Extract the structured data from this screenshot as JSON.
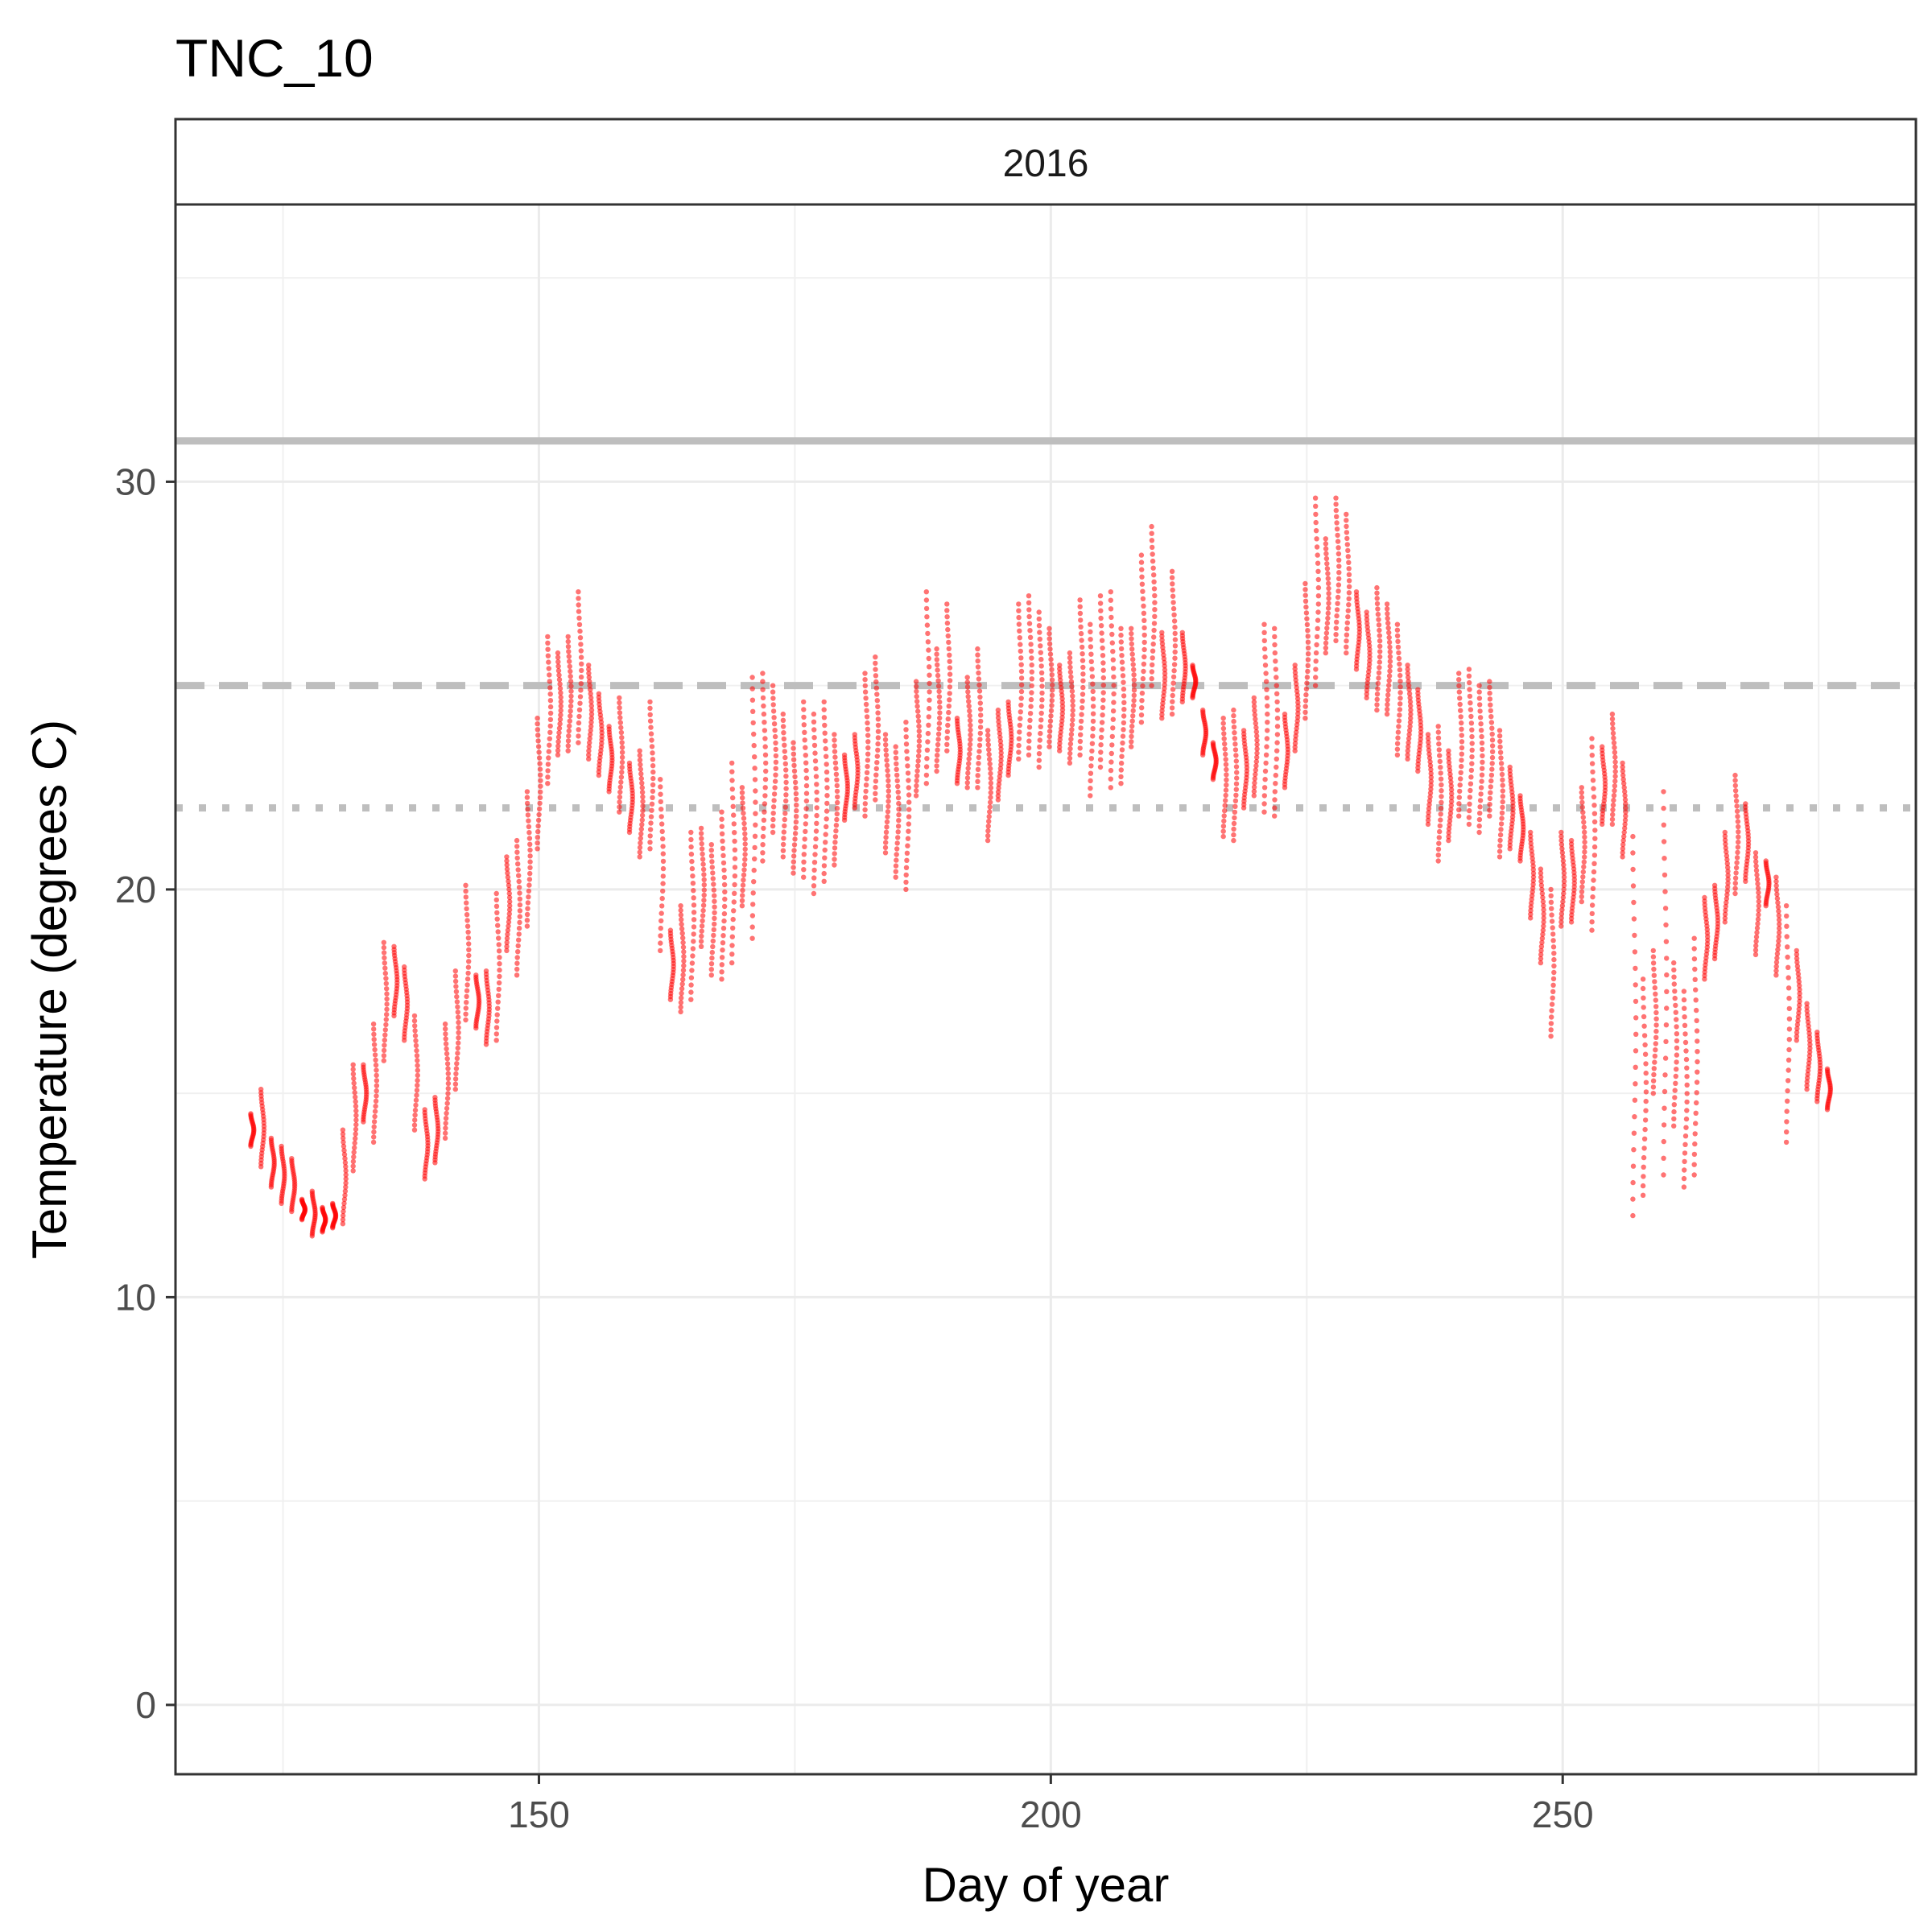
{
  "chart_data": {
    "type": "scatter",
    "title": "TNC_10",
    "facet_label": "2016",
    "xlabel": "Day of year",
    "ylabel": "Temperature (degrees C)",
    "xlim": [
      114.5,
      284.5
    ],
    "ylim": [
      -1.7,
      36.8
    ],
    "x_ticks": [
      150,
      200,
      250
    ],
    "y_ticks": [
      0,
      10,
      20,
      30
    ],
    "grid": true,
    "point_color": "#ff0000",
    "reference_lines": [
      {
        "y": 31,
        "style": "solid",
        "color": "#bebebe"
      },
      {
        "y": 25,
        "style": "dashed",
        "color": "#bebebe"
      },
      {
        "y": 22,
        "style": "dotted",
        "color": "#bebebe"
      }
    ],
    "daily_ranges": [
      [
        122,
        13.7,
        14.5
      ],
      [
        123,
        13.2,
        15.1
      ],
      [
        124,
        12.7,
        13.9
      ],
      [
        125,
        12.3,
        13.7
      ],
      [
        126,
        12.1,
        13.4
      ],
      [
        127,
        11.9,
        12.4
      ],
      [
        128,
        11.5,
        12.6
      ],
      [
        129,
        11.6,
        12.2
      ],
      [
        130,
        11.7,
        12.3
      ],
      [
        131,
        11.8,
        14.1
      ],
      [
        132,
        13.1,
        15.7
      ],
      [
        133,
        14.3,
        15.7
      ],
      [
        134,
        13.8,
        16.7
      ],
      [
        135,
        15.8,
        18.7
      ],
      [
        136,
        16.9,
        18.6
      ],
      [
        137,
        16.3,
        18.1
      ],
      [
        138,
        14.1,
        16.9
      ],
      [
        139,
        12.9,
        14.6
      ],
      [
        140,
        13.3,
        14.9
      ],
      [
        141,
        13.9,
        16.7
      ],
      [
        142,
        15.1,
        18.0
      ],
      [
        143,
        16.8,
        20.1
      ],
      [
        144,
        16.6,
        17.9
      ],
      [
        145,
        16.2,
        18.0
      ],
      [
        146,
        16.3,
        19.9
      ],
      [
        147,
        18.5,
        20.8
      ],
      [
        148,
        17.9,
        21.2
      ],
      [
        149,
        19.1,
        22.4
      ],
      [
        150,
        21.0,
        24.2
      ],
      [
        151,
        22.6,
        26.2
      ],
      [
        152,
        23.3,
        25.8
      ],
      [
        153,
        23.4,
        26.2
      ],
      [
        154,
        23.6,
        27.3
      ],
      [
        155,
        23.2,
        25.5
      ],
      [
        156,
        22.8,
        24.8
      ],
      [
        157,
        22.4,
        24.0
      ],
      [
        158,
        21.9,
        24.7
      ],
      [
        159,
        21.4,
        23.1
      ],
      [
        160,
        20.8,
        23.4
      ],
      [
        161,
        21.0,
        24.6
      ],
      [
        162,
        18.5,
        22.7
      ],
      [
        163,
        17.3,
        19.0
      ],
      [
        164,
        17.0,
        19.6
      ],
      [
        165,
        17.3,
        21.4
      ],
      [
        166,
        18.6,
        21.5
      ],
      [
        167,
        17.9,
        21.1
      ],
      [
        168,
        17.8,
        21.9
      ],
      [
        169,
        18.2,
        23.1
      ],
      [
        170,
        19.6,
        22.5
      ],
      [
        171,
        18.8,
        25.2
      ],
      [
        172,
        20.7,
        25.3
      ],
      [
        173,
        21.4,
        25.0
      ],
      [
        174,
        20.8,
        24.3
      ],
      [
        175,
        20.4,
        23.6
      ],
      [
        176,
        20.3,
        24.6
      ],
      [
        177,
        19.9,
        24.3
      ],
      [
        178,
        20.2,
        24.6
      ],
      [
        179,
        20.6,
        23.8
      ],
      [
        180,
        21.7,
        23.3
      ],
      [
        181,
        22.0,
        23.8
      ],
      [
        182,
        21.8,
        25.3
      ],
      [
        183,
        22.2,
        25.7
      ],
      [
        184,
        20.9,
        23.8
      ],
      [
        185,
        20.3,
        23.5
      ],
      [
        186,
        20.0,
        24.1
      ],
      [
        187,
        22.3,
        25.1
      ],
      [
        188,
        22.6,
        27.3
      ],
      [
        189,
        22.9,
        25.9
      ],
      [
        190,
        23.4,
        27.0
      ],
      [
        191,
        22.6,
        24.2
      ],
      [
        192,
        22.5,
        25.2
      ],
      [
        193,
        22.5,
        25.9
      ],
      [
        194,
        21.2,
        23.9
      ],
      [
        195,
        22.2,
        24.4
      ],
      [
        196,
        22.8,
        24.6
      ],
      [
        197,
        23.2,
        27.0
      ],
      [
        198,
        23.3,
        27.2
      ],
      [
        199,
        23.0,
        26.8
      ],
      [
        200,
        23.5,
        26.4
      ],
      [
        201,
        23.4,
        25.5
      ],
      [
        202,
        23.1,
        25.8
      ],
      [
        203,
        23.3,
        27.1
      ],
      [
        204,
        22.3,
        26.5
      ],
      [
        205,
        23.0,
        27.2
      ],
      [
        206,
        22.5,
        27.3
      ],
      [
        207,
        22.6,
        26.4
      ],
      [
        208,
        23.5,
        26.4
      ],
      [
        209,
        24.1,
        28.2
      ],
      [
        210,
        25.0,
        28.9
      ],
      [
        211,
        24.2,
        26.3
      ],
      [
        212,
        24.3,
        27.8
      ],
      [
        213,
        24.6,
        26.3
      ],
      [
        214,
        24.7,
        25.5
      ],
      [
        215,
        23.3,
        24.4
      ],
      [
        216,
        22.7,
        23.6
      ],
      [
        217,
        21.3,
        24.2
      ],
      [
        218,
        21.2,
        24.4
      ],
      [
        219,
        22.0,
        23.9
      ],
      [
        220,
        22.3,
        24.7
      ],
      [
        221,
        21.9,
        26.5
      ],
      [
        222,
        21.8,
        26.4
      ],
      [
        223,
        22.5,
        24.3
      ],
      [
        224,
        23.4,
        25.5
      ],
      [
        225,
        24.2,
        27.5
      ],
      [
        226,
        25.0,
        29.6
      ],
      [
        227,
        25.8,
        28.6
      ],
      [
        228,
        26.1,
        29.6
      ],
      [
        229,
        25.8,
        29.2
      ],
      [
        230,
        25.4,
        27.3
      ],
      [
        231,
        24.7,
        26.8
      ],
      [
        232,
        24.4,
        27.4
      ],
      [
        233,
        24.3,
        27.0
      ],
      [
        234,
        23.3,
        26.5
      ],
      [
        235,
        23.2,
        25.5
      ],
      [
        236,
        22.9,
        24.9
      ],
      [
        237,
        21.6,
        23.8
      ],
      [
        238,
        20.7,
        24.0
      ],
      [
        239,
        21.2,
        23.4
      ],
      [
        240,
        21.8,
        25.3
      ],
      [
        241,
        21.6,
        25.4
      ],
      [
        242,
        21.4,
        25.0
      ],
      [
        243,
        21.8,
        25.1
      ],
      [
        244,
        20.8,
        23.9
      ],
      [
        245,
        21.0,
        23.0
      ],
      [
        246,
        20.7,
        22.3
      ],
      [
        247,
        19.3,
        21.4
      ],
      [
        248,
        18.2,
        20.5
      ],
      [
        249,
        16.4,
        20.0
      ],
      [
        250,
        19.1,
        21.4
      ],
      [
        251,
        19.2,
        21.2
      ],
      [
        252,
        19.7,
        22.5
      ],
      [
        253,
        19.0,
        23.7
      ],
      [
        254,
        21.6,
        23.5
      ],
      [
        255,
        21.6,
        24.3
      ],
      [
        256,
        20.8,
        23.1
      ],
      [
        257,
        12.0,
        21.3
      ],
      [
        258,
        12.5,
        17.8
      ],
      [
        259,
        15.0,
        18.5
      ],
      [
        260,
        13.0,
        22.4
      ],
      [
        261,
        14.2,
        18.2
      ],
      [
        262,
        12.7,
        17.5
      ],
      [
        263,
        13.0,
        18.8
      ],
      [
        264,
        17.8,
        19.8
      ],
      [
        265,
        18.3,
        20.1
      ],
      [
        266,
        19.2,
        21.4
      ],
      [
        267,
        19.9,
        22.8
      ],
      [
        268,
        20.2,
        22.1
      ],
      [
        269,
        18.4,
        20.9
      ],
      [
        270,
        19.6,
        20.7
      ],
      [
        271,
        17.9,
        20.3
      ],
      [
        272,
        13.8,
        19.6
      ],
      [
        273,
        16.3,
        18.5
      ],
      [
        274,
        15.1,
        17.2
      ],
      [
        275,
        14.8,
        16.5
      ],
      [
        276,
        14.6,
        15.6
      ]
    ]
  }
}
